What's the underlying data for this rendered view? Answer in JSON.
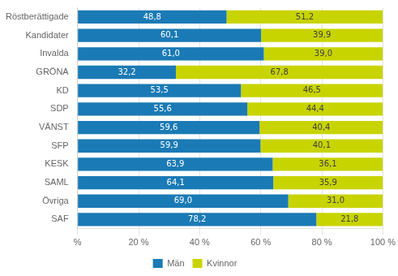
{
  "chart_data": {
    "type": "bar",
    "orientation": "horizontal",
    "stacked": true,
    "categories": [
      "Röstberättigade",
      "Kandidater",
      "Invalda",
      "GRÖNA",
      "KD",
      "SDP",
      "VÄNST",
      "SFP",
      "KESK",
      "SAML",
      "Övriga",
      "SAF"
    ],
    "series": [
      {
        "name": "Män",
        "color": "#1a7ab5",
        "values": [
          48.8,
          60.1,
          61.0,
          32.2,
          53.5,
          55.6,
          59.6,
          59.9,
          63.9,
          64.1,
          69.0,
          78.2
        ],
        "value_labels": [
          "48,8",
          "60,1",
          "61,0",
          "32,2",
          "53,5",
          "55,6",
          "59,6",
          "59,9",
          "63,9",
          "64,1",
          "69,0",
          "78,2"
        ]
      },
      {
        "name": "Kvinnor",
        "color": "#c8d400",
        "values": [
          51.2,
          39.9,
          39.0,
          67.8,
          46.5,
          44.4,
          40.4,
          40.1,
          36.1,
          35.9,
          31.0,
          21.8
        ],
        "value_labels": [
          "51,2",
          "39,9",
          "39,0",
          "67,8",
          "46,5",
          "44,4",
          "40,4",
          "40,1",
          "36,1",
          "35,9",
          "31,0",
          "21,8"
        ]
      }
    ],
    "xlim": [
      0,
      100
    ],
    "xticks": [
      {
        "value": 0,
        "label": "%"
      },
      {
        "value": 20,
        "label": "20 %"
      },
      {
        "value": 40,
        "label": "40 %"
      },
      {
        "value": 60,
        "label": "60 %"
      },
      {
        "value": 80,
        "label": "80 %"
      },
      {
        "value": 100,
        "label": "100 %"
      }
    ],
    "grid": true,
    "legend": "bottom",
    "data_labels": true
  }
}
